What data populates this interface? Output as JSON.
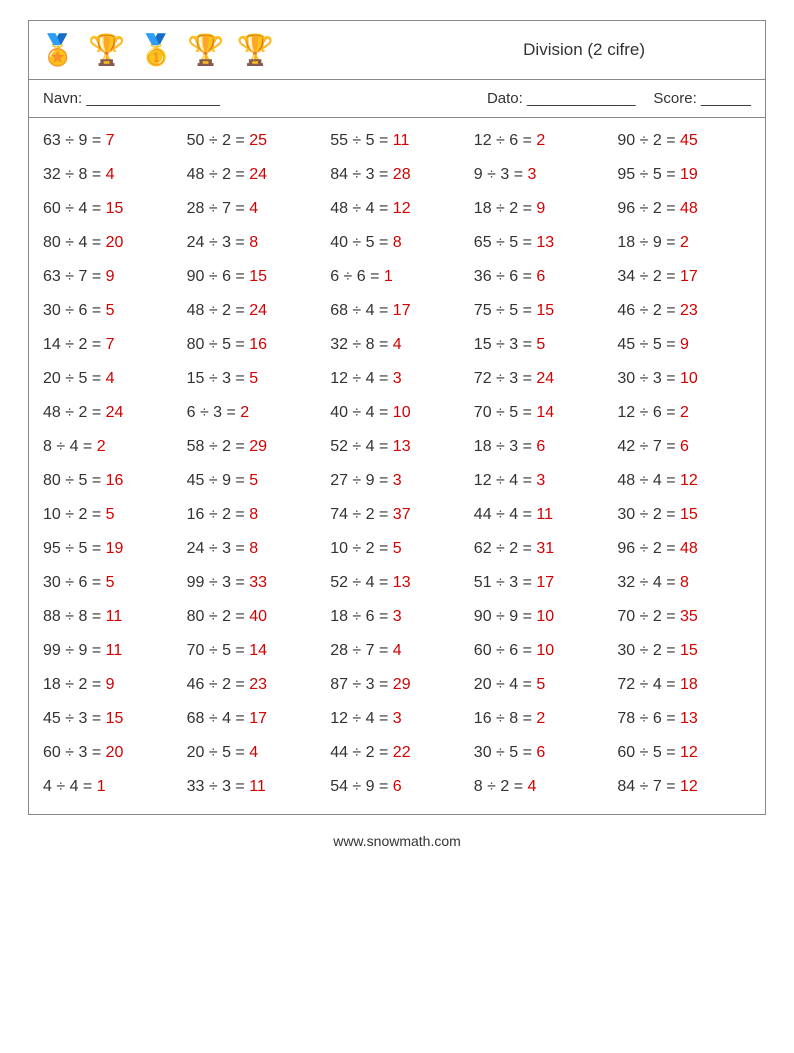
{
  "title": "Division (2 cifre)",
  "labels": {
    "name": "Navn: ________________",
    "date": "Dato: _____________",
    "score": "Score: ______"
  },
  "trophy_icons": [
    "🏅",
    "🏆",
    "🥇",
    "🏆",
    "🏆"
  ],
  "footer": "www.snowmath.com",
  "answer_color": "#d40000",
  "text_color": "#333333",
  "border_color": "#888888",
  "font_size_body": 16,
  "columns": 5,
  "rows": 20,
  "problems": [
    [
      {
        "a": 63,
        "b": 9,
        "r": 7
      },
      {
        "a": 50,
        "b": 2,
        "r": 25
      },
      {
        "a": 55,
        "b": 5,
        "r": 11
      },
      {
        "a": 12,
        "b": 6,
        "r": 2
      },
      {
        "a": 90,
        "b": 2,
        "r": 45
      }
    ],
    [
      {
        "a": 32,
        "b": 8,
        "r": 4
      },
      {
        "a": 48,
        "b": 2,
        "r": 24
      },
      {
        "a": 84,
        "b": 3,
        "r": 28
      },
      {
        "a": 9,
        "b": 3,
        "r": 3
      },
      {
        "a": 95,
        "b": 5,
        "r": 19
      }
    ],
    [
      {
        "a": 60,
        "b": 4,
        "r": 15
      },
      {
        "a": 28,
        "b": 7,
        "r": 4
      },
      {
        "a": 48,
        "b": 4,
        "r": 12
      },
      {
        "a": 18,
        "b": 2,
        "r": 9
      },
      {
        "a": 96,
        "b": 2,
        "r": 48
      }
    ],
    [
      {
        "a": 80,
        "b": 4,
        "r": 20
      },
      {
        "a": 24,
        "b": 3,
        "r": 8
      },
      {
        "a": 40,
        "b": 5,
        "r": 8
      },
      {
        "a": 65,
        "b": 5,
        "r": 13
      },
      {
        "a": 18,
        "b": 9,
        "r": 2
      }
    ],
    [
      {
        "a": 63,
        "b": 7,
        "r": 9
      },
      {
        "a": 90,
        "b": 6,
        "r": 15
      },
      {
        "a": 6,
        "b": 6,
        "r": 1
      },
      {
        "a": 36,
        "b": 6,
        "r": 6
      },
      {
        "a": 34,
        "b": 2,
        "r": 17
      }
    ],
    [
      {
        "a": 30,
        "b": 6,
        "r": 5
      },
      {
        "a": 48,
        "b": 2,
        "r": 24
      },
      {
        "a": 68,
        "b": 4,
        "r": 17
      },
      {
        "a": 75,
        "b": 5,
        "r": 15
      },
      {
        "a": 46,
        "b": 2,
        "r": 23
      }
    ],
    [
      {
        "a": 14,
        "b": 2,
        "r": 7
      },
      {
        "a": 80,
        "b": 5,
        "r": 16
      },
      {
        "a": 32,
        "b": 8,
        "r": 4
      },
      {
        "a": 15,
        "b": 3,
        "r": 5
      },
      {
        "a": 45,
        "b": 5,
        "r": 9
      }
    ],
    [
      {
        "a": 20,
        "b": 5,
        "r": 4
      },
      {
        "a": 15,
        "b": 3,
        "r": 5
      },
      {
        "a": 12,
        "b": 4,
        "r": 3
      },
      {
        "a": 72,
        "b": 3,
        "r": 24
      },
      {
        "a": 30,
        "b": 3,
        "r": 10
      }
    ],
    [
      {
        "a": 48,
        "b": 2,
        "r": 24
      },
      {
        "a": 6,
        "b": 3,
        "r": 2
      },
      {
        "a": 40,
        "b": 4,
        "r": 10
      },
      {
        "a": 70,
        "b": 5,
        "r": 14
      },
      {
        "a": 12,
        "b": 6,
        "r": 2
      }
    ],
    [
      {
        "a": 8,
        "b": 4,
        "r": 2
      },
      {
        "a": 58,
        "b": 2,
        "r": 29
      },
      {
        "a": 52,
        "b": 4,
        "r": 13
      },
      {
        "a": 18,
        "b": 3,
        "r": 6
      },
      {
        "a": 42,
        "b": 7,
        "r": 6
      }
    ],
    [
      {
        "a": 80,
        "b": 5,
        "r": 16
      },
      {
        "a": 45,
        "b": 9,
        "r": 5
      },
      {
        "a": 27,
        "b": 9,
        "r": 3
      },
      {
        "a": 12,
        "b": 4,
        "r": 3
      },
      {
        "a": 48,
        "b": 4,
        "r": 12
      }
    ],
    [
      {
        "a": 10,
        "b": 2,
        "r": 5
      },
      {
        "a": 16,
        "b": 2,
        "r": 8
      },
      {
        "a": 74,
        "b": 2,
        "r": 37
      },
      {
        "a": 44,
        "b": 4,
        "r": 11
      },
      {
        "a": 30,
        "b": 2,
        "r": 15
      }
    ],
    [
      {
        "a": 95,
        "b": 5,
        "r": 19
      },
      {
        "a": 24,
        "b": 3,
        "r": 8
      },
      {
        "a": 10,
        "b": 2,
        "r": 5
      },
      {
        "a": 62,
        "b": 2,
        "r": 31
      },
      {
        "a": 96,
        "b": 2,
        "r": 48
      }
    ],
    [
      {
        "a": 30,
        "b": 6,
        "r": 5
      },
      {
        "a": 99,
        "b": 3,
        "r": 33
      },
      {
        "a": 52,
        "b": 4,
        "r": 13
      },
      {
        "a": 51,
        "b": 3,
        "r": 17
      },
      {
        "a": 32,
        "b": 4,
        "r": 8
      }
    ],
    [
      {
        "a": 88,
        "b": 8,
        "r": 11
      },
      {
        "a": 80,
        "b": 2,
        "r": 40
      },
      {
        "a": 18,
        "b": 6,
        "r": 3
      },
      {
        "a": 90,
        "b": 9,
        "r": 10
      },
      {
        "a": 70,
        "b": 2,
        "r": 35
      }
    ],
    [
      {
        "a": 99,
        "b": 9,
        "r": 11
      },
      {
        "a": 70,
        "b": 5,
        "r": 14
      },
      {
        "a": 28,
        "b": 7,
        "r": 4
      },
      {
        "a": 60,
        "b": 6,
        "r": 10
      },
      {
        "a": 30,
        "b": 2,
        "r": 15
      }
    ],
    [
      {
        "a": 18,
        "b": 2,
        "r": 9
      },
      {
        "a": 46,
        "b": 2,
        "r": 23
      },
      {
        "a": 87,
        "b": 3,
        "r": 29
      },
      {
        "a": 20,
        "b": 4,
        "r": 5
      },
      {
        "a": 72,
        "b": 4,
        "r": 18
      }
    ],
    [
      {
        "a": 45,
        "b": 3,
        "r": 15
      },
      {
        "a": 68,
        "b": 4,
        "r": 17
      },
      {
        "a": 12,
        "b": 4,
        "r": 3
      },
      {
        "a": 16,
        "b": 8,
        "r": 2
      },
      {
        "a": 78,
        "b": 6,
        "r": 13
      }
    ],
    [
      {
        "a": 60,
        "b": 3,
        "r": 20
      },
      {
        "a": 20,
        "b": 5,
        "r": 4
      },
      {
        "a": 44,
        "b": 2,
        "r": 22
      },
      {
        "a": 30,
        "b": 5,
        "r": 6
      },
      {
        "a": 60,
        "b": 5,
        "r": 12
      }
    ],
    [
      {
        "a": 4,
        "b": 4,
        "r": 1
      },
      {
        "a": 33,
        "b": 3,
        "r": 11
      },
      {
        "a": 54,
        "b": 9,
        "r": 6
      },
      {
        "a": 8,
        "b": 2,
        "r": 4
      },
      {
        "a": 84,
        "b": 7,
        "r": 12
      }
    ]
  ]
}
